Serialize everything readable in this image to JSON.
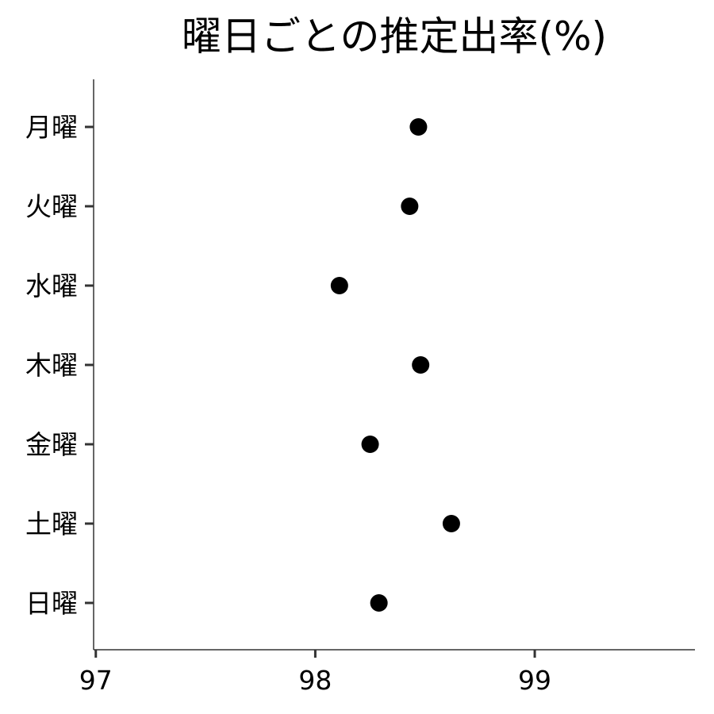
{
  "chart_data": {
    "type": "scatter",
    "title": "曜日ごとの推定出率(%)",
    "xlabel": "",
    "ylabel": "",
    "categories": [
      "月曜",
      "火曜",
      "水曜",
      "木曜",
      "金曜",
      "土曜",
      "日曜"
    ],
    "series": [
      {
        "values": [
          98.47,
          98.43,
          98.11,
          98.48,
          98.25,
          98.62,
          98.29
        ]
      }
    ],
    "xlim": [
      96.99,
      99.73
    ],
    "xticks": [
      97,
      98,
      99
    ],
    "xtick_labels": [
      "97",
      "98",
      "99"
    ],
    "grid": false,
    "legend": "none",
    "point_color": "#000000",
    "axis_color": "#333333"
  }
}
